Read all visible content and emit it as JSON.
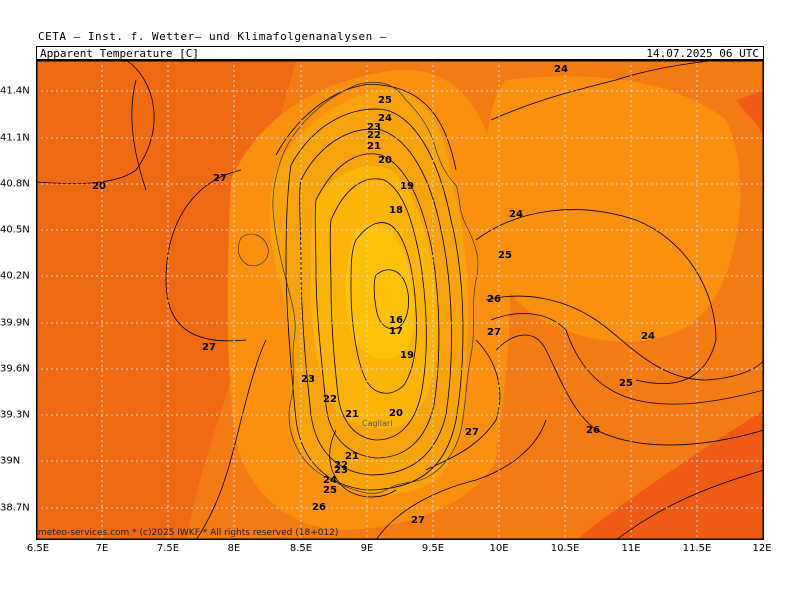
{
  "header": {
    "title": "CETA — Inst. f. Wetter— und Klimafolgenanalysen —",
    "parameter": "Apparent_Temperature [C]",
    "datetime": "14.07.2025 06 UTC"
  },
  "footer": "meteo-services.com * (c)2025 IWKF * All rights reserved (18+012)",
  "x_ticks": [
    "6.5E",
    "7E",
    "7.5E",
    "8E",
    "8.5E",
    "9E",
    "9.5E",
    "10E",
    "10.5E",
    "11E",
    "11.5E",
    "12E"
  ],
  "y_ticks": [
    "41.4N",
    "41.1N",
    "40.8N",
    "40.5N",
    "40.2N",
    "39.9N",
    "39.6N",
    "39.3N",
    "39N",
    "38.7N"
  ],
  "city_label": "Cagliari",
  "contour_labels": [
    {
      "t": "24"
    },
    {
      "t": "25"
    },
    {
      "t": "24"
    },
    {
      "t": "23"
    },
    {
      "t": "22"
    },
    {
      "t": "21"
    },
    {
      "t": "20"
    },
    {
      "t": "20"
    },
    {
      "t": "27"
    },
    {
      "t": "19"
    },
    {
      "t": "18"
    },
    {
      "t": "24"
    },
    {
      "t": "25"
    },
    {
      "t": "26"
    },
    {
      "t": "27"
    },
    {
      "t": "16"
    },
    {
      "t": "17"
    },
    {
      "t": "19"
    },
    {
      "t": "27"
    },
    {
      "t": "24"
    },
    {
      "t": "23"
    },
    {
      "t": "25"
    },
    {
      "t": "22"
    },
    {
      "t": "21"
    },
    {
      "t": "20"
    },
    {
      "t": "26"
    },
    {
      "t": "27"
    },
    {
      "t": "21"
    },
    {
      "t": "22"
    },
    {
      "t": "23"
    },
    {
      "t": "24"
    },
    {
      "t": "25"
    },
    {
      "t": "26"
    },
    {
      "t": "27"
    }
  ],
  "colors": {
    "sea_deep": "#f06a14",
    "sea": "#f47a14",
    "warm_inland": "#f99010",
    "land_mid": "#f9a30c",
    "land_cool": "#fbb50a",
    "land_coolest": "#fcc208",
    "hot": "#ef5a14",
    "grid": "#d8d8d8"
  }
}
